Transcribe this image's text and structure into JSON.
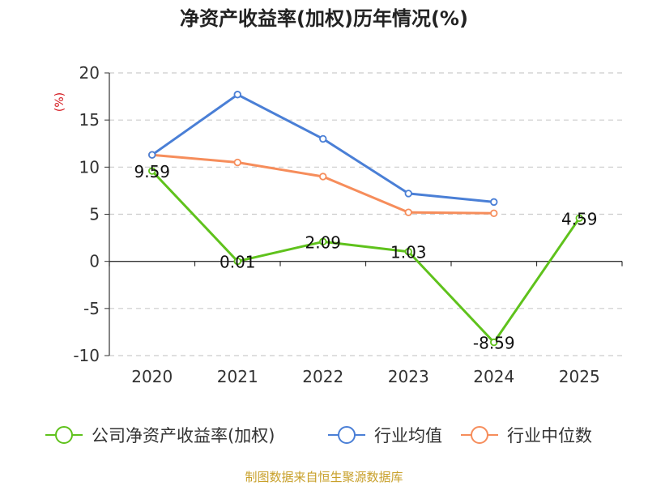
{
  "colors": {
    "company": "#5fc21c",
    "industry_avg": "#4a7fd6",
    "industry_median": "#f68d5b",
    "grid": "#cccccc",
    "axis": "#333333",
    "unit": "#d4141a",
    "source": "#c8a02a"
  },
  "chart_data": {
    "type": "line",
    "title": "净资产收益率(加权)历年情况(%)",
    "ylabel": "(%)",
    "xlabel": "",
    "categories": [
      "2020",
      "2021",
      "2022",
      "2023",
      "2024",
      "2025"
    ],
    "ylim": [
      -10,
      20
    ],
    "yticks": [
      -10,
      -5,
      0,
      5,
      10,
      15,
      20
    ],
    "grid": true,
    "legend_position": "bottom",
    "series": [
      {
        "name": "公司净资产收益率(加权)",
        "color_key": "company",
        "values": [
          9.59,
          0.01,
          2.09,
          1.03,
          -8.59,
          4.59
        ],
        "labels": [
          "9.59",
          "0.01",
          "2.09",
          "1.03",
          "-8.59",
          "4.59"
        ]
      },
      {
        "name": "行业均值",
        "color_key": "industry_avg",
        "values": [
          11.3,
          17.7,
          13.0,
          7.2,
          6.3,
          null
        ]
      },
      {
        "name": "行业中位数",
        "color_key": "industry_median",
        "values": [
          11.3,
          10.5,
          9.0,
          5.2,
          5.1,
          null
        ]
      }
    ]
  },
  "source_text": "制图数据来自恒生聚源数据库"
}
